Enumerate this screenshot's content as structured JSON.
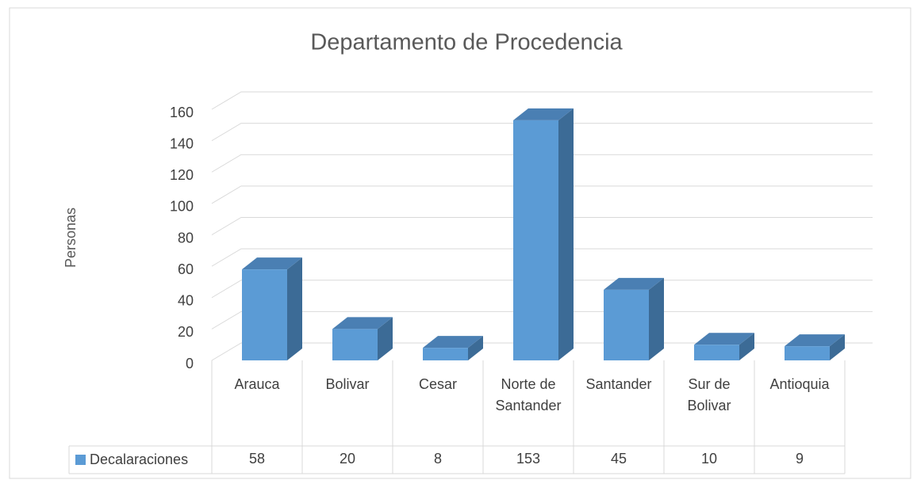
{
  "chart_data": {
    "type": "bar3d",
    "title": "Departamento de Procedencia",
    "y_label": "Personas",
    "categories": [
      "Arauca",
      "Bolivar",
      "Cesar",
      "Norte de Santander",
      "Santander",
      "Sur de Bolivar",
      "Antioquia"
    ],
    "series": [
      {
        "name": "Decalaraciones",
        "color": "#5b9bd5",
        "values": [
          58,
          20,
          8,
          153,
          45,
          10,
          9
        ]
      }
    ],
    "ylim": [
      0,
      160
    ],
    "yticks": [
      0,
      20,
      40,
      60,
      80,
      100,
      120,
      140,
      160
    ],
    "grid": true,
    "data_table": true
  }
}
